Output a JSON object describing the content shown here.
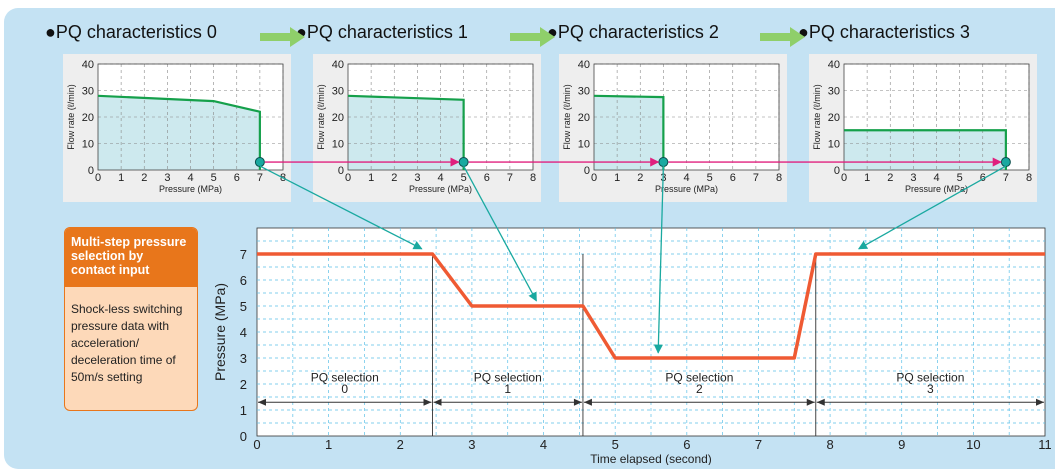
{
  "pq_headers": [
    {
      "label": "●PQ characteristics 0"
    },
    {
      "label": "●PQ characteristics 1"
    },
    {
      "label": "●PQ characteristics 2"
    },
    {
      "label": "●PQ characteristics 3"
    }
  ],
  "info_box": {
    "title": "Multi-step pressure selection by contact input",
    "body": "Shock-less switching pressure data with acceleration/ deceleration time of 50m/s setting"
  },
  "colors": {
    "panel_bg": "#c4e2f3",
    "pq_line": "#15a04b",
    "pq_fill": "#cde9ee",
    "arrow_green": "#8fcf6a",
    "magenta": "#e0207e",
    "teal": "#1aa9a0",
    "pressure_line": "#ef5a33",
    "grid_dash": "#5bc0e8",
    "orange": "#e8761b",
    "orange_light": "#fdd9b9"
  },
  "chart_data": [
    {
      "type": "line",
      "title": "PQ characteristics 0",
      "xlabel": "Pressure (MPa)",
      "ylabel": "Flow rate (ℓ/min)",
      "xlim": [
        0,
        8
      ],
      "ylim": [
        0,
        40
      ],
      "xticks": [
        "0",
        "1",
        "2",
        "3",
        "4",
        "5",
        "6",
        "7",
        "8"
      ],
      "yticks": [
        "0",
        "10",
        "20",
        "30",
        "40"
      ],
      "x": [
        0,
        5,
        7,
        7
      ],
      "y": [
        28,
        26,
        22,
        0
      ],
      "marker": [
        7,
        3
      ]
    },
    {
      "type": "line",
      "title": "PQ characteristics 1",
      "xlabel": "Pressure (MPa)",
      "ylabel": "Flow rate (ℓ/min)",
      "xlim": [
        0,
        8
      ],
      "ylim": [
        0,
        40
      ],
      "xticks": [
        "0",
        "1",
        "2",
        "3",
        "4",
        "5",
        "6",
        "7",
        "8"
      ],
      "yticks": [
        "0",
        "10",
        "20",
        "30",
        "40"
      ],
      "x": [
        0,
        5,
        5
      ],
      "y": [
        28,
        26.5,
        0
      ],
      "marker": [
        5,
        3
      ]
    },
    {
      "type": "line",
      "title": "PQ characteristics 2",
      "xlabel": "Pressure (MPa)",
      "ylabel": "Flow rate (ℓ/min)",
      "xlim": [
        0,
        8
      ],
      "ylim": [
        0,
        40
      ],
      "xticks": [
        "0",
        "1",
        "2",
        "3",
        "4",
        "5",
        "6",
        "7",
        "8"
      ],
      "yticks": [
        "0",
        "10",
        "20",
        "30",
        "40"
      ],
      "x": [
        0,
        3,
        3
      ],
      "y": [
        28,
        27.5,
        0
      ],
      "marker": [
        3,
        3
      ]
    },
    {
      "type": "line",
      "title": "PQ characteristics 3",
      "xlabel": "Pressure (MPa)",
      "ylabel": "Flow rate (ℓ/min)",
      "xlim": [
        0,
        8
      ],
      "ylim": [
        0,
        40
      ],
      "xticks": [
        "0",
        "1",
        "2",
        "3",
        "4",
        "5",
        "6",
        "7",
        "8"
      ],
      "yticks": [
        "0",
        "10",
        "20",
        "30",
        "40"
      ],
      "x": [
        0,
        7,
        7
      ],
      "y": [
        15,
        15,
        0
      ],
      "marker": [
        7,
        3
      ]
    },
    {
      "type": "line",
      "xlabel": "Time elapsed (second)",
      "ylabel": "Pressure (MPa)",
      "xlim": [
        0,
        11
      ],
      "ylim": [
        0,
        8
      ],
      "xticks": [
        "0",
        "1",
        "2",
        "3",
        "4",
        "5",
        "6",
        "7",
        "8",
        "9",
        "10",
        "11"
      ],
      "yticks": [
        "0",
        "1",
        "2",
        "3",
        "4",
        "5",
        "6",
        "7"
      ],
      "x": [
        0,
        2.45,
        3,
        4.55,
        5,
        7.5,
        7.8,
        11
      ],
      "y": [
        7,
        7,
        5,
        5,
        3,
        3,
        7,
        7
      ],
      "segments": [
        {
          "label": "PQ selection",
          "number": "0",
          "from": 0,
          "to": 2.45
        },
        {
          "label": "PQ selection",
          "number": "1",
          "from": 2.45,
          "to": 4.55
        },
        {
          "label": "PQ selection",
          "number": "2",
          "from": 4.55,
          "to": 7.8
        },
        {
          "label": "PQ selection",
          "number": "3",
          "from": 7.8,
          "to": 11
        }
      ]
    }
  ]
}
